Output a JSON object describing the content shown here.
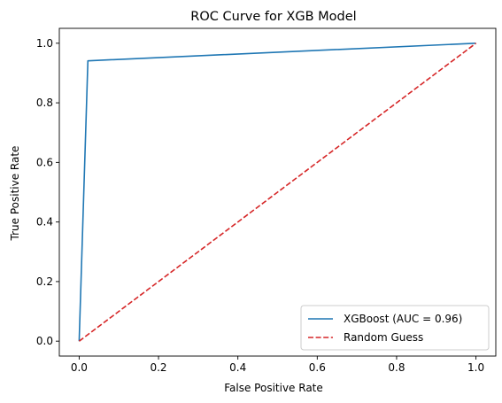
{
  "chart_data": {
    "type": "line",
    "title": "ROC Curve for XGB Model",
    "xlabel": "False Positive Rate",
    "ylabel": "True Positive Rate",
    "xlim": [
      -0.05,
      1.05
    ],
    "ylim": [
      -0.05,
      1.05
    ],
    "x_ticks": [
      0.0,
      0.2,
      0.4,
      0.6,
      0.8,
      1.0
    ],
    "y_ticks": [
      0.0,
      0.2,
      0.4,
      0.6,
      0.8,
      1.0
    ],
    "x_tick_labels": [
      "0.0",
      "0.2",
      "0.4",
      "0.6",
      "0.8",
      "1.0"
    ],
    "y_tick_labels": [
      "0.0",
      "0.2",
      "0.4",
      "0.6",
      "0.8",
      "1.0"
    ],
    "grid": false,
    "legend_position": "lower-right",
    "series": [
      {
        "name": "XGBoost (AUC = 0.96)",
        "color": "#1f77b4",
        "style": "solid",
        "x": [
          0.0,
          0.022,
          1.0
        ],
        "y": [
          0.0,
          0.941,
          1.0
        ]
      },
      {
        "name": "Random Guess",
        "color": "#d62728",
        "style": "dashed",
        "x": [
          0.0,
          1.0
        ],
        "y": [
          0.0,
          1.0
        ]
      }
    ]
  }
}
